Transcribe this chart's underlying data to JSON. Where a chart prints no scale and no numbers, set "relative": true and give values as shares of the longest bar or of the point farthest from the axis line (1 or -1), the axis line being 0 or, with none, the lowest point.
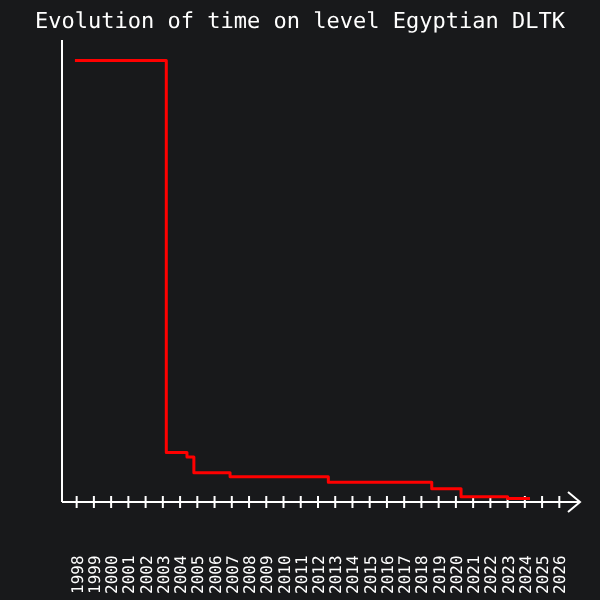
{
  "chart_data": {
    "type": "step",
    "title": "Evolution of time on level Egyptian DLTK",
    "relative": true,
    "x": [
      1997.9,
      2003.2,
      2004.4,
      2004.8,
      2006.9,
      2012.6,
      2018.6,
      2020.3,
      2023.0,
      2024.3
    ],
    "series": [
      {
        "color": "#ff0000",
        "values": [
          1,
          0.112,
          0.102,
          0.066,
          0.057,
          0.045,
          0.03,
          0.012,
          0.008,
          0.008
        ]
      }
    ],
    "xlim": [
      1997.15,
      2027.2
    ],
    "xticks": [
      1998,
      1999,
      2000,
      2001,
      2002,
      2003,
      2004,
      2005,
      2006,
      2007,
      2008,
      2009,
      2010,
      2011,
      2012,
      2013,
      2014,
      2015,
      2016,
      2017,
      2018,
      2019,
      2020,
      2021,
      2022,
      2023,
      2024,
      2025,
      2026
    ],
    "tick_labels": "x"
  }
}
